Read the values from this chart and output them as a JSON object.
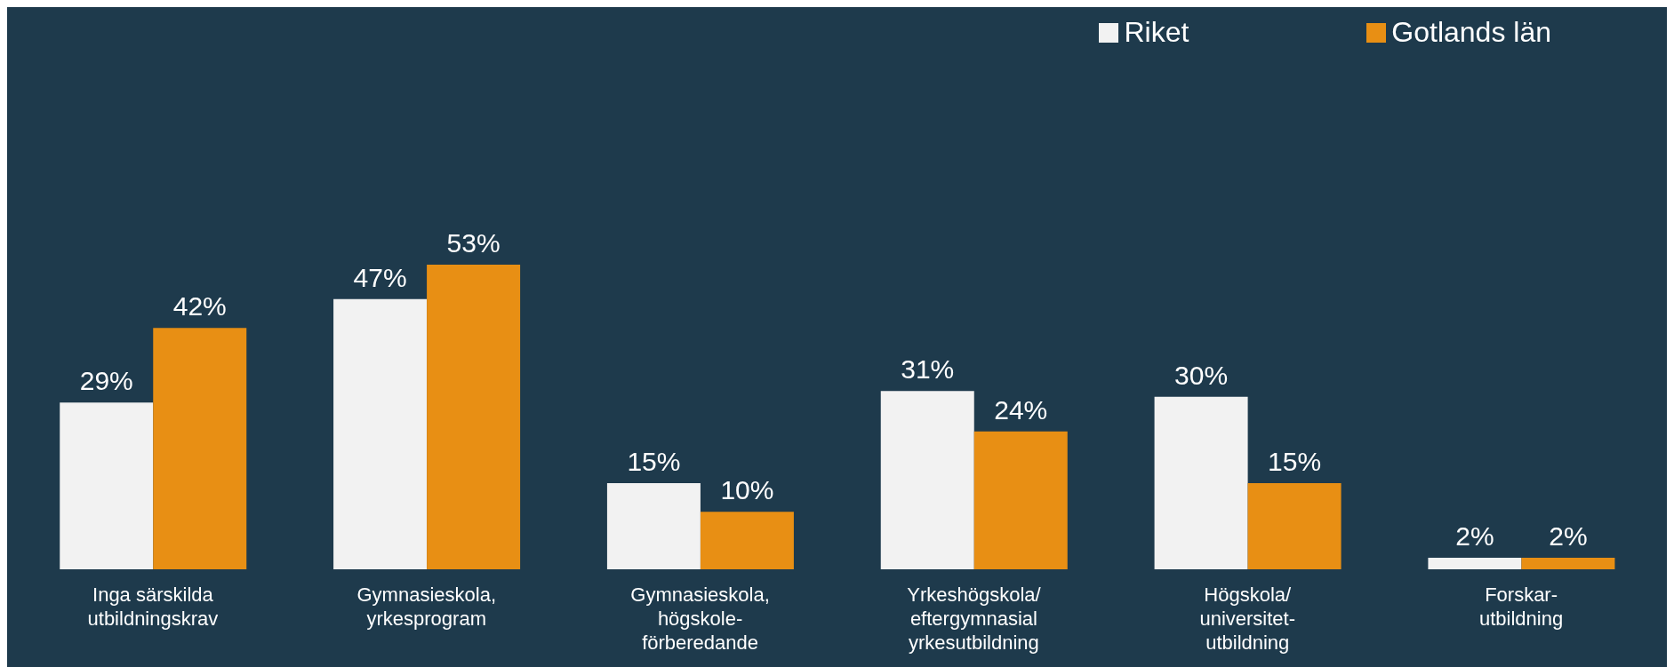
{
  "chart_data": {
    "type": "bar",
    "categories": [
      "Inga särskilda\nutbildningskrav",
      "Gymnasieskola,\nyrkesprogram",
      "Gymnasieskola,\nhögskole-\nförberedande",
      "Yrkeshögskola/\neftergymnasial\nyrkesutbildning",
      "Högskola/\nuniversitet-\nutbildning",
      "Forskar-\nutbildning"
    ],
    "series": [
      {
        "name": "Riket",
        "color": "#f2f2f2",
        "values": [
          29,
          47,
          15,
          31,
          30,
          2
        ],
        "value_labels": [
          "29%",
          "47%",
          "15%",
          "31%",
          "30%",
          "2%"
        ]
      },
      {
        "name": "Gotlands län",
        "color": "#e88f14",
        "values": [
          42,
          53,
          10,
          24,
          15,
          2
        ],
        "value_labels": [
          "42%",
          "53%",
          "10%",
          "24%",
          "15%",
          "2%"
        ]
      }
    ],
    "legend": "top right",
    "grid": false
  }
}
